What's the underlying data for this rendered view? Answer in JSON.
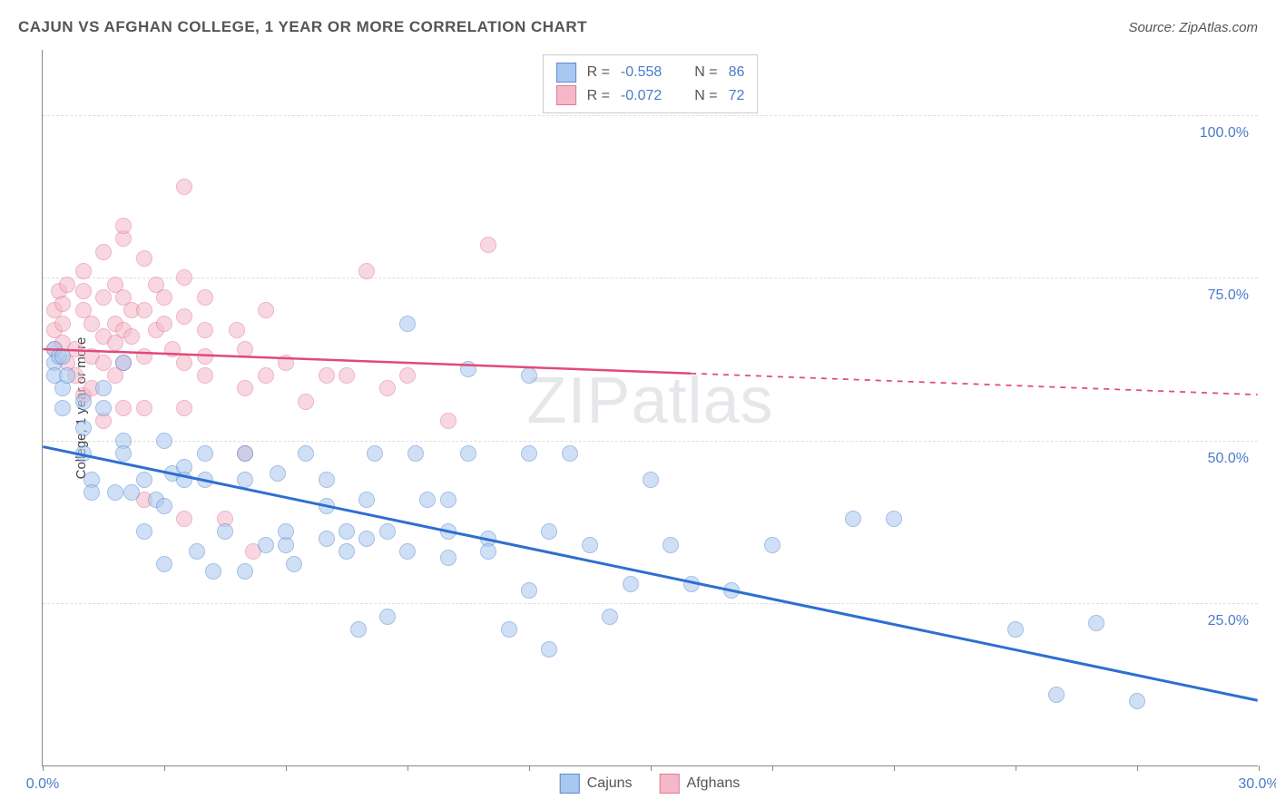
{
  "title": "CAJUN VS AFGHAN COLLEGE, 1 YEAR OR MORE CORRELATION CHART",
  "source": "Source: ZipAtlas.com",
  "watermark_a": "ZIP",
  "watermark_b": "atlas",
  "chart": {
    "type": "scatter",
    "ylabel": "College, 1 year or more",
    "xlim": [
      0,
      30
    ],
    "ylim": [
      0,
      110
    ],
    "x_ticks": [
      0,
      3,
      6,
      9,
      12,
      15,
      18,
      21,
      24,
      27,
      30
    ],
    "x_tick_labels": {
      "0": "0.0%",
      "30": "30.0%"
    },
    "y_gridlines": [
      25,
      50,
      75,
      100
    ],
    "y_tick_labels": {
      "25": "25.0%",
      "50": "50.0%",
      "75": "75.0%",
      "100": "100.0%"
    },
    "background_color": "#ffffff",
    "grid_color": "#dddddd",
    "axis_color": "#888888",
    "tick_label_color": "#4a7bc8",
    "marker_radius": 9,
    "marker_opacity": 0.55,
    "marker_stroke_opacity": 0.8,
    "series": {
      "cajuns": {
        "label": "Cajuns",
        "fill": "#a8c8f0",
        "stroke": "#5a8bd0",
        "trend_color": "#2e6fd0",
        "trend_width": 3,
        "trend": {
          "x1": 0,
          "y1": 49,
          "x2": 30,
          "y2": 10,
          "solid_until_x": 30
        },
        "R": "-0.558",
        "N": "86",
        "points": [
          [
            0.3,
            64
          ],
          [
            0.3,
            62
          ],
          [
            0.3,
            60
          ],
          [
            0.4,
            63
          ],
          [
            0.5,
            58
          ],
          [
            0.5,
            55
          ],
          [
            0.5,
            63
          ],
          [
            0.6,
            60
          ],
          [
            1.0,
            56
          ],
          [
            1.0,
            52
          ],
          [
            1.0,
            48
          ],
          [
            1.2,
            44
          ],
          [
            1.2,
            42
          ],
          [
            1.5,
            58
          ],
          [
            1.5,
            55
          ],
          [
            1.8,
            42
          ],
          [
            2.0,
            62
          ],
          [
            2.0,
            50
          ],
          [
            2.0,
            48
          ],
          [
            2.2,
            42
          ],
          [
            2.5,
            44
          ],
          [
            2.5,
            36
          ],
          [
            2.8,
            41
          ],
          [
            3.0,
            50
          ],
          [
            3.0,
            40
          ],
          [
            3.0,
            31
          ],
          [
            3.2,
            45
          ],
          [
            3.5,
            46
          ],
          [
            3.5,
            44
          ],
          [
            3.8,
            33
          ],
          [
            4.0,
            48
          ],
          [
            4.0,
            44
          ],
          [
            4.2,
            30
          ],
          [
            4.5,
            36
          ],
          [
            5.0,
            48
          ],
          [
            5.0,
            44
          ],
          [
            5.0,
            30
          ],
          [
            5.5,
            34
          ],
          [
            5.8,
            45
          ],
          [
            6.0,
            34
          ],
          [
            6.0,
            36
          ],
          [
            6.2,
            31
          ],
          [
            6.5,
            48
          ],
          [
            7.0,
            40
          ],
          [
            7.0,
            35
          ],
          [
            7.0,
            44
          ],
          [
            7.5,
            36
          ],
          [
            7.5,
            33
          ],
          [
            7.8,
            21
          ],
          [
            8.0,
            41
          ],
          [
            8.0,
            35
          ],
          [
            8.2,
            48
          ],
          [
            8.5,
            36
          ],
          [
            8.5,
            23
          ],
          [
            9.0,
            68
          ],
          [
            9.0,
            33
          ],
          [
            9.2,
            48
          ],
          [
            9.5,
            41
          ],
          [
            10.0,
            41
          ],
          [
            10.0,
            36
          ],
          [
            10.0,
            32
          ],
          [
            10.5,
            61
          ],
          [
            10.5,
            48
          ],
          [
            11.0,
            35
          ],
          [
            11.0,
            33
          ],
          [
            11.5,
            21
          ],
          [
            12.0,
            60
          ],
          [
            12.0,
            48
          ],
          [
            12.0,
            27
          ],
          [
            12.5,
            36
          ],
          [
            12.5,
            18
          ],
          [
            13.0,
            48
          ],
          [
            13.5,
            34
          ],
          [
            14.0,
            23
          ],
          [
            14.5,
            28
          ],
          [
            15.0,
            44
          ],
          [
            15.5,
            34
          ],
          [
            16.0,
            28
          ],
          [
            17.0,
            27
          ],
          [
            18.0,
            34
          ],
          [
            20.0,
            38
          ],
          [
            21.0,
            38
          ],
          [
            24.0,
            21
          ],
          [
            25.0,
            11
          ],
          [
            26.0,
            22
          ],
          [
            27.0,
            10
          ]
        ]
      },
      "afghans": {
        "label": "Afghans",
        "fill": "#f5b8c8",
        "stroke": "#e07a9a",
        "trend_color": "#e04a7a",
        "trend_width": 2.5,
        "trend": {
          "x1": 0,
          "y1": 64,
          "x2": 30,
          "y2": 57,
          "solid_until_x": 16
        },
        "R": "-0.072",
        "N": "72",
        "points": [
          [
            0.3,
            70
          ],
          [
            0.3,
            67
          ],
          [
            0.3,
            64
          ],
          [
            0.4,
            73
          ],
          [
            0.5,
            65
          ],
          [
            0.5,
            68
          ],
          [
            0.5,
            71
          ],
          [
            0.6,
            62
          ],
          [
            0.6,
            74
          ],
          [
            0.8,
            64
          ],
          [
            0.8,
            60
          ],
          [
            1.0,
            76
          ],
          [
            1.0,
            73
          ],
          [
            1.0,
            70
          ],
          [
            1.0,
            57
          ],
          [
            1.2,
            68
          ],
          [
            1.2,
            63
          ],
          [
            1.2,
            58
          ],
          [
            1.5,
            79
          ],
          [
            1.5,
            72
          ],
          [
            1.5,
            66
          ],
          [
            1.5,
            62
          ],
          [
            1.5,
            53
          ],
          [
            1.8,
            74
          ],
          [
            1.8,
            68
          ],
          [
            1.8,
            65
          ],
          [
            1.8,
            60
          ],
          [
            2.0,
            81
          ],
          [
            2.0,
            83
          ],
          [
            2.0,
            72
          ],
          [
            2.0,
            67
          ],
          [
            2.0,
            62
          ],
          [
            2.0,
            55
          ],
          [
            2.2,
            70
          ],
          [
            2.2,
            66
          ],
          [
            2.5,
            78
          ],
          [
            2.5,
            70
          ],
          [
            2.5,
            63
          ],
          [
            2.5,
            55
          ],
          [
            2.5,
            41
          ],
          [
            2.8,
            74
          ],
          [
            2.8,
            67
          ],
          [
            3.0,
            72
          ],
          [
            3.0,
            68
          ],
          [
            3.2,
            64
          ],
          [
            3.5,
            89
          ],
          [
            3.5,
            75
          ],
          [
            3.5,
            69
          ],
          [
            3.5,
            62
          ],
          [
            3.5,
            55
          ],
          [
            3.5,
            38
          ],
          [
            4.0,
            72
          ],
          [
            4.0,
            67
          ],
          [
            4.0,
            63
          ],
          [
            4.0,
            60
          ],
          [
            4.5,
            38
          ],
          [
            4.8,
            67
          ],
          [
            5.0,
            64
          ],
          [
            5.0,
            58
          ],
          [
            5.0,
            48
          ],
          [
            5.2,
            33
          ],
          [
            5.5,
            70
          ],
          [
            5.5,
            60
          ],
          [
            6.0,
            62
          ],
          [
            6.5,
            56
          ],
          [
            7.0,
            60
          ],
          [
            7.5,
            60
          ],
          [
            8.0,
            76
          ],
          [
            8.5,
            58
          ],
          [
            9.0,
            60
          ],
          [
            10.0,
            53
          ],
          [
            11.0,
            80
          ]
        ]
      }
    }
  },
  "legend_top": {
    "R_label": "R =",
    "N_label": "N ="
  }
}
